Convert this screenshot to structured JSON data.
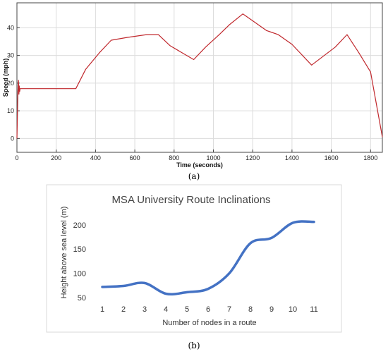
{
  "chart_data": [
    {
      "type": "line",
      "panel_label": "(a)",
      "title": "",
      "xlabel": "Time (seconds)",
      "ylabel": "Speed (mph)",
      "xlim": [
        0,
        1860
      ],
      "ylim": [
        -5,
        49
      ],
      "xticks": [
        0,
        200,
        400,
        600,
        800,
        1000,
        1200,
        1400,
        1600,
        1800
      ],
      "yticks": [
        0,
        10,
        20,
        30,
        40
      ],
      "grid": true,
      "color": "#c0282d",
      "series": [
        {
          "x": [
            0,
            5,
            8,
            10,
            12,
            14,
            16,
            20,
            40,
            300,
            350,
            420,
            480,
            560,
            660,
            720,
            780,
            900,
            960,
            1030,
            1080,
            1150,
            1200,
            1270,
            1330,
            1400,
            1500,
            1620,
            1680,
            1740,
            1800,
            1860
          ],
          "y": [
            0,
            17,
            21,
            16,
            19,
            17,
            18,
            18,
            18,
            18,
            25,
            31,
            35.5,
            36.5,
            37.5,
            37.5,
            33.5,
            28.5,
            33,
            37.5,
            41,
            45,
            42.5,
            39,
            37.5,
            34,
            26.5,
            33,
            37.5,
            31,
            24,
            0.5
          ]
        }
      ]
    },
    {
      "type": "line",
      "panel_label": "(b)",
      "title": "MSA University Route Inclinations",
      "xlabel": "Number of nodes in a route",
      "ylabel": "Height above sea level (m)",
      "categories": [
        "1",
        "2",
        "3",
        "4",
        "5",
        "6",
        "7",
        "8",
        "9",
        "10",
        "11"
      ],
      "ylim": [
        50,
        220
      ],
      "yticks": [
        50,
        100,
        150,
        200
      ],
      "grid": false,
      "color": "#4472c4",
      "series": [
        {
          "values": [
            72,
            74,
            80,
            58,
            61,
            68,
            100,
            162,
            173,
            204,
            206
          ]
        }
      ]
    }
  ]
}
